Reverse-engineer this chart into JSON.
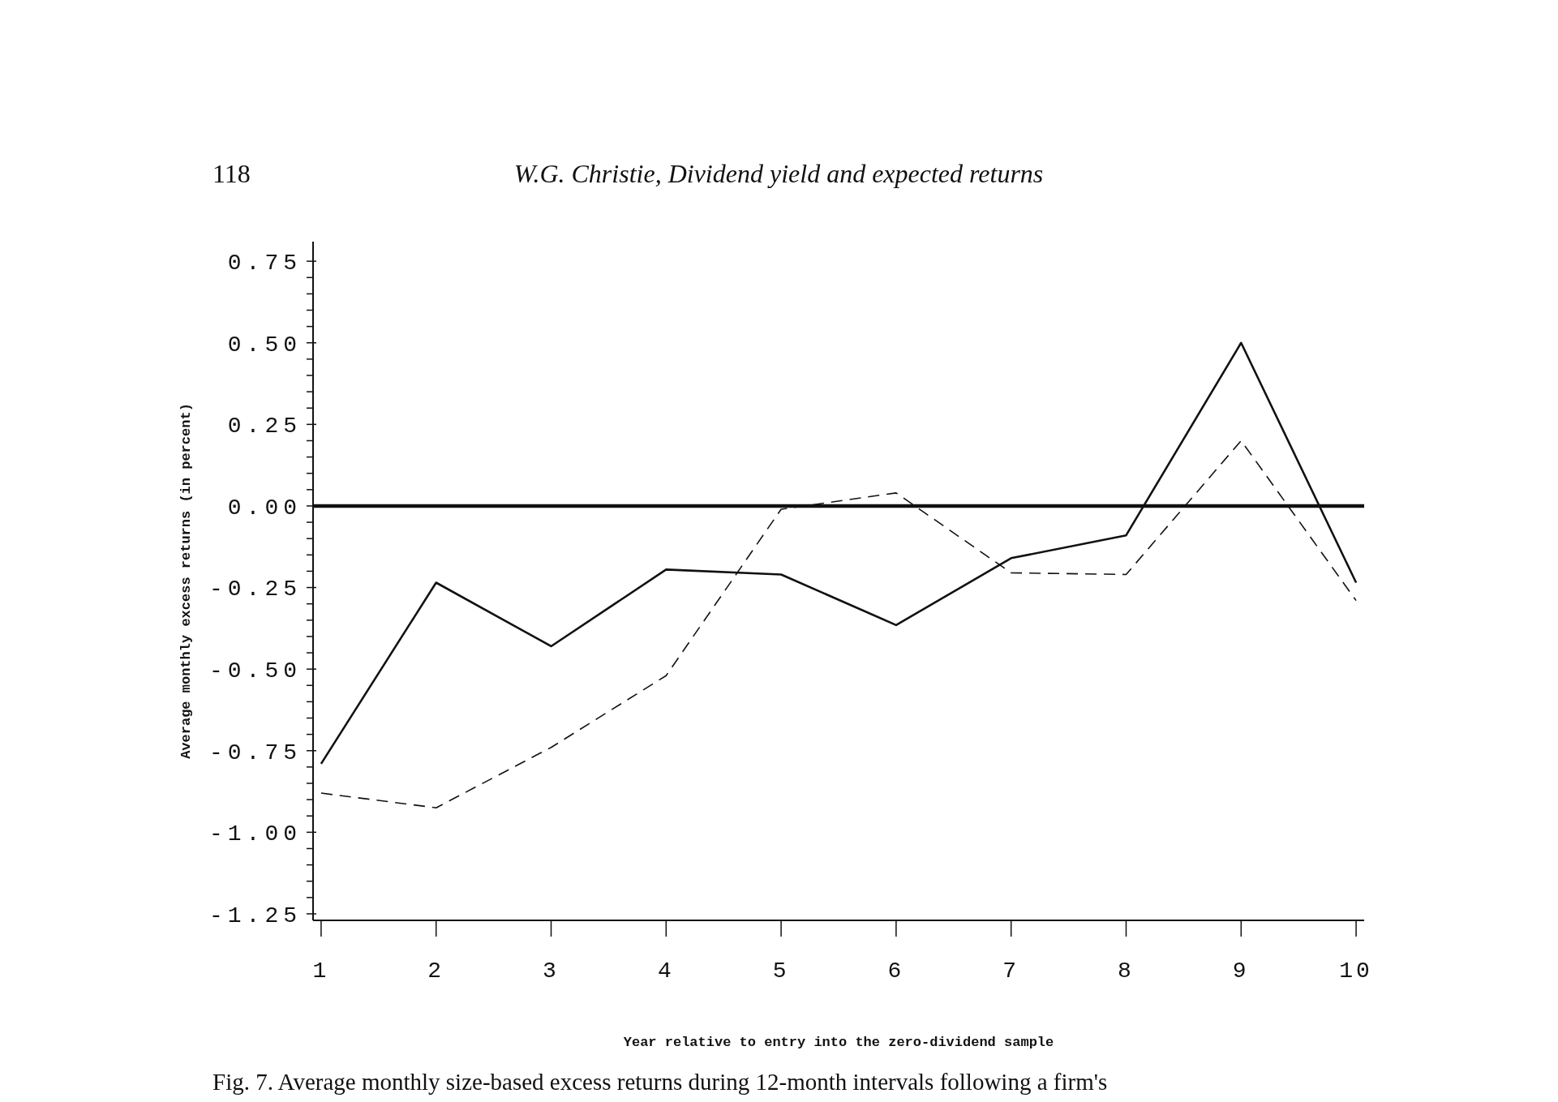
{
  "chart_data": {
    "type": "line",
    "xlabel": "Year relative to entry into the zero-dividend sample",
    "ylabel": "Average monthly excess returns (in percent)",
    "x": [
      1,
      2,
      3,
      4,
      5,
      6,
      7,
      8,
      9,
      10
    ],
    "series": [
      {
        "color": "#111111",
        "line_style": "solid",
        "values": [
          -0.79,
          -0.235,
          -0.43,
          -0.195,
          -0.21,
          -0.365,
          -0.16,
          -0.09,
          0.5,
          -0.235
        ]
      },
      {
        "color": "#111111",
        "line_style": "dashed",
        "values": [
          -0.88,
          -0.925,
          -0.74,
          -0.52,
          -0.01,
          0.04,
          -0.205,
          -0.21,
          0.2,
          -0.29
        ]
      }
    ],
    "xlim": [
      0.93,
      10.07
    ],
    "xticks": [
      1,
      2,
      3,
      4,
      5,
      6,
      7,
      8,
      9,
      10
    ],
    "ylim": [
      -1.27,
      0.81
    ],
    "yticks": [
      {
        "value": 0.75,
        "label": "0.75"
      },
      {
        "value": 0.7,
        "label": null
      },
      {
        "value": 0.65,
        "label": null
      },
      {
        "value": 0.6,
        "label": null
      },
      {
        "value": 0.55,
        "label": null
      },
      {
        "value": 0.5,
        "label": "0.50"
      },
      {
        "value": 0.45,
        "label": null
      },
      {
        "value": 0.4,
        "label": null
      },
      {
        "value": 0.35,
        "label": null
      },
      {
        "value": 0.3,
        "label": null
      },
      {
        "value": 0.25,
        "label": "0.25"
      },
      {
        "value": 0.2,
        "label": null
      },
      {
        "value": 0.15,
        "label": null
      },
      {
        "value": 0.1,
        "label": null
      },
      {
        "value": 0.05,
        "label": null
      },
      {
        "value": 0,
        "label": "0.00"
      },
      {
        "value": -0.05,
        "label": null
      },
      {
        "value": -0.1,
        "label": null
      },
      {
        "value": -0.15,
        "label": null
      },
      {
        "value": -0.2,
        "label": null
      },
      {
        "value": -0.25,
        "label": "-0.25"
      },
      {
        "value": -0.3,
        "label": null
      },
      {
        "value": -0.35,
        "label": null
      },
      {
        "value": -0.4,
        "label": null
      },
      {
        "value": -0.45,
        "label": null
      },
      {
        "value": -0.5,
        "label": "-0.50"
      },
      {
        "value": -0.55,
        "label": null
      },
      {
        "value": -0.6,
        "label": null
      },
      {
        "value": -0.65,
        "label": null
      },
      {
        "value": -0.7,
        "label": null
      },
      {
        "value": -0.75,
        "label": "-0.75"
      },
      {
        "value": -0.8,
        "label": null
      },
      {
        "value": -0.85,
        "label": null
      },
      {
        "value": -0.9,
        "label": null
      },
      {
        "value": -0.95,
        "label": null
      },
      {
        "value": -1,
        "label": "-1.00"
      },
      {
        "value": -1.05,
        "label": null
      },
      {
        "value": -1.1,
        "label": null
      },
      {
        "value": -1.15,
        "label": null
      },
      {
        "value": -1.2,
        "label": null
      },
      {
        "value": -1.25,
        "label": "-1.25"
      }
    ],
    "ref_lines": [
      {
        "axis": "y",
        "value": 0,
        "line_style": "solid",
        "color": "#111111"
      }
    ],
    "marker": "none",
    "grid": false,
    "legend": false,
    "annotations": [
      "118",
      "W.G. Christie, Dividend yield and expected returns",
      "Fig. 7. Average monthly size-based excess returns during 12-month intervals following a firm's"
    ]
  }
}
